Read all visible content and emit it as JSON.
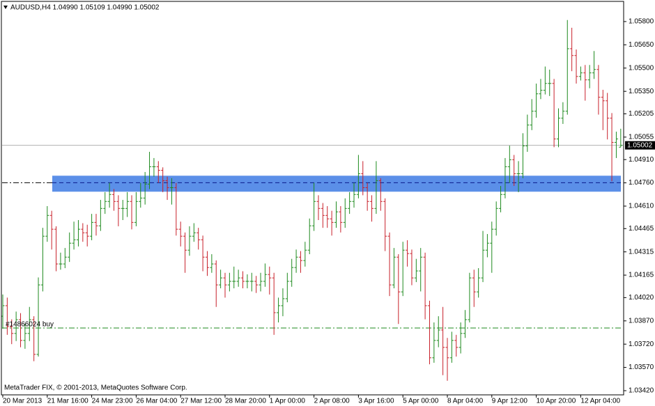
{
  "chart_data": {
    "type": "ohlc",
    "title": "AUDUSD,H4  1.04990 1.05109 1.04990 1.05002",
    "footer": "MetaTrader FIX, © 2001-2013, MetaQuotes Software Corp.",
    "categories": [
      "20 Mar 2013",
      null,
      null,
      null,
      null,
      null,
      null,
      null,
      null,
      null,
      "21 Mar 16:00",
      null,
      null,
      null,
      null,
      null,
      null,
      null,
      null,
      null,
      "24 Mar 23:00",
      null,
      null,
      null,
      null,
      null,
      null,
      null,
      null,
      null,
      "26 Mar 04:00",
      null,
      null,
      null,
      null,
      null,
      null,
      null,
      null,
      null,
      "27 Mar 12:00",
      null,
      null,
      null,
      null,
      null,
      null,
      null,
      null,
      null,
      "28 Mar 20:00",
      null,
      null,
      null,
      null,
      null,
      null,
      null,
      null,
      null,
      "1 Apr 00:00",
      null,
      null,
      null,
      null,
      null,
      null,
      null,
      null,
      null,
      "2 Apr 08:00",
      null,
      null,
      null,
      null,
      null,
      null,
      null,
      null,
      null,
      "3 Apr 16:00",
      null,
      null,
      null,
      null,
      null,
      null,
      null,
      null,
      null,
      "5 Apr 00:00",
      null,
      null,
      null,
      null,
      null,
      null,
      null,
      null,
      null,
      "8 Apr 04:00",
      null,
      null,
      null,
      null,
      null,
      null,
      null,
      null,
      null,
      "9 Apr 12:00",
      null,
      null,
      null,
      null,
      null,
      null,
      null,
      null,
      null,
      "10 Apr 20:00",
      null,
      null,
      null,
      null,
      null,
      null,
      null,
      null,
      null,
      "12 Apr 04:00",
      null,
      null,
      null,
      null,
      null,
      null,
      null,
      null,
      null
    ],
    "open": [
      1.039,
      1.03968,
      1.03833,
      1.03789,
      1.03878,
      1.03744,
      1.03789,
      1.03878,
      1.03654,
      1.04102,
      1.04416,
      1.0455,
      1.04461,
      1.04237,
      1.04237,
      1.04281,
      1.04371,
      1.04393,
      1.04461,
      1.04438,
      1.04416,
      1.04505,
      1.04483,
      1.04595,
      1.0464,
      1.04685,
      1.0464,
      1.04595,
      1.04595,
      1.0464,
      1.04505,
      1.0464,
      1.04662,
      1.04752,
      1.04864,
      1.04864,
      1.04841,
      1.04774,
      1.04729,
      1.04729,
      1.04461,
      1.04416,
      1.04326,
      1.04416,
      1.04438,
      1.04393,
      1.04281,
      1.04214,
      1.04237,
      1.04102,
      1.04147,
      1.04102,
      1.04125,
      1.04125,
      1.04147,
      1.04125,
      1.04125,
      1.04125,
      1.04102,
      1.04125,
      1.04169,
      1.04147,
      1.03923,
      1.03968,
      1.04013,
      1.04125,
      1.04214,
      1.04281,
      1.04259,
      1.04326,
      1.04483,
      1.0464,
      1.04595,
      1.0455,
      1.04528,
      1.04505,
      1.04573,
      1.04505,
      1.04595,
      1.0464,
      1.04685,
      1.04819,
      1.04729,
      1.0464,
      1.04595,
      1.04774,
      1.0464,
      1.04416,
      1.04102,
      1.04281,
      1.04057,
      1.04326,
      1.04304,
      1.04147,
      1.04192,
      1.04281,
      1.03968,
      1.03632,
      1.03744,
      1.03811,
      1.03699,
      1.03632,
      1.03744,
      1.03699,
      1.03789,
      1.03878,
      1.04147,
      1.04057,
      1.04147,
      1.04326,
      1.04371,
      1.04461,
      1.04595,
      1.04685,
      1.04864,
      1.04909,
      1.04819,
      1.04819,
      1.04998,
      1.05133,
      1.05222,
      1.05334,
      1.05357,
      1.05401,
      1.05401,
      1.05043,
      1.05177,
      1.05222,
      1.05625,
      1.05581,
      1.05446,
      1.05469,
      1.05424,
      1.05469,
      1.05491,
      1.05312,
      1.05289,
      1.05177,
      1.05021,
      1.0499
    ],
    "high": [
      1.0404,
      1.0402,
      1.0388,
      1.0393,
      1.0392,
      1.0385,
      1.0396,
      1.039,
      1.0415,
      1.0447,
      1.0461,
      1.0458,
      1.0448,
      1.0431,
      1.0434,
      1.0444,
      1.0451,
      1.0452,
      1.045,
      1.0449,
      1.0456,
      1.0456,
      1.0465,
      1.047,
      1.0476,
      1.0472,
      1.0468,
      1.0465,
      1.047,
      1.0468,
      1.047,
      1.0476,
      1.0483,
      1.0496,
      1.0492,
      1.049,
      1.0486,
      1.048,
      1.0479,
      1.0476,
      1.0451,
      1.0444,
      1.0448,
      1.045,
      1.0447,
      1.0442,
      1.0432,
      1.043,
      1.0426,
      1.042,
      1.0418,
      1.0418,
      1.0422,
      1.042,
      1.0419,
      1.0417,
      1.0418,
      1.0416,
      1.0418,
      1.0424,
      1.0422,
      1.0418,
      1.0402,
      1.0408,
      1.0418,
      1.0427,
      1.0433,
      1.0432,
      1.0438,
      1.0453,
      1.0476,
      1.0468,
      1.0463,
      1.0461,
      1.0458,
      1.0464,
      1.0461,
      1.0466,
      1.047,
      1.0476,
      1.0494,
      1.049,
      1.0476,
      1.0468,
      1.049,
      1.0479,
      1.0466,
      1.0444,
      1.0434,
      1.043,
      1.0438,
      1.0439,
      1.0433,
      1.0427,
      1.0434,
      1.0431,
      1.04,
      1.0386,
      1.039,
      1.0396,
      1.0376,
      1.038,
      1.0378,
      1.0386,
      1.0394,
      1.0418,
      1.042,
      1.0421,
      1.0445,
      1.0443,
      1.0451,
      1.0464,
      1.0474,
      1.0492,
      1.05,
      1.0494,
      1.049,
      1.0508,
      1.052,
      1.053,
      1.054,
      1.0543,
      1.0551,
      1.0549,
      1.0543,
      1.0524,
      1.0528,
      1.0581,
      1.0576,
      1.0562,
      1.0551,
      1.0552,
      1.0552,
      1.0561,
      1.0552,
      1.0536,
      1.0534,
      1.0521,
      1.0509,
      1.05109
    ],
    "low": [
      1.0382,
      1.0378,
      1.0372,
      1.0374,
      1.037,
      1.0369,
      1.0374,
      1.0361,
      1.0364,
      1.0406,
      1.0438,
      1.0433,
      1.0419,
      1.042,
      1.0421,
      1.0425,
      1.0433,
      1.0435,
      1.0438,
      1.0435,
      1.0439,
      1.0442,
      1.0445,
      1.0456,
      1.046,
      1.0458,
      1.0448,
      1.0452,
      1.0454,
      1.0446,
      1.0448,
      1.046,
      1.0462,
      1.0472,
      1.048,
      1.0476,
      1.047,
      1.0465,
      1.0462,
      1.0442,
      1.0435,
      1.0418,
      1.0429,
      1.0438,
      1.0433,
      1.0419,
      1.0416,
      1.0418,
      1.0396,
      1.0408,
      1.0402,
      1.0406,
      1.0408,
      1.0409,
      1.0408,
      1.0408,
      1.0406,
      1.0405,
      1.0406,
      1.0409,
      1.0404,
      1.0378,
      1.0386,
      1.039,
      1.0399,
      1.0409,
      1.0418,
      1.0418,
      1.0422,
      1.043,
      1.0445,
      1.0452,
      1.0447,
      1.0447,
      1.0442,
      1.0447,
      1.0444,
      1.0447,
      1.0456,
      1.046,
      1.0466,
      1.0468,
      1.0458,
      1.0451,
      1.0456,
      1.0458,
      1.0432,
      1.0403,
      1.0408,
      1.0385,
      1.0403,
      1.0422,
      1.041,
      1.0412,
      1.0406,
      1.0388,
      1.0359,
      1.036,
      1.037,
      1.0352,
      1.03484,
      1.036,
      1.0364,
      1.0366,
      1.0376,
      1.0386,
      1.0396,
      1.0402,
      1.0412,
      1.0428,
      1.0418,
      1.0442,
      1.0457,
      1.0466,
      1.0476,
      1.0474,
      1.047,
      1.0479,
      1.0496,
      1.051,
      1.0518,
      1.053,
      1.0533,
      1.0532,
      1.0499,
      1.0499,
      1.0514,
      1.052,
      1.0548,
      1.054,
      1.0542,
      1.0529,
      1.0537,
      1.0543,
      1.052,
      1.051,
      1.0504,
      1.0477,
      1.0492,
      1.0499
    ],
    "close": [
      1.03968,
      1.03833,
      1.03789,
      1.03878,
      1.03744,
      1.03789,
      1.03878,
      1.03654,
      1.04102,
      1.04416,
      1.0455,
      1.04461,
      1.04237,
      1.04237,
      1.04281,
      1.04371,
      1.04393,
      1.04461,
      1.04438,
      1.04416,
      1.04505,
      1.04483,
      1.04595,
      1.0464,
      1.04685,
      1.0464,
      1.04595,
      1.04595,
      1.0464,
      1.04505,
      1.0464,
      1.04662,
      1.04752,
      1.04864,
      1.04864,
      1.04841,
      1.04774,
      1.04729,
      1.04729,
      1.04461,
      1.04416,
      1.04326,
      1.04416,
      1.04438,
      1.04393,
      1.04281,
      1.04214,
      1.04237,
      1.04102,
      1.04147,
      1.04102,
      1.04125,
      1.04125,
      1.04147,
      1.04125,
      1.04125,
      1.04125,
      1.04102,
      1.04125,
      1.04169,
      1.04147,
      1.03923,
      1.03968,
      1.04013,
      1.04125,
      1.04214,
      1.04281,
      1.04259,
      1.04326,
      1.04483,
      1.0464,
      1.04595,
      1.0455,
      1.04528,
      1.04505,
      1.04573,
      1.04505,
      1.04595,
      1.0464,
      1.04685,
      1.04819,
      1.04729,
      1.0464,
      1.04595,
      1.04774,
      1.0464,
      1.04416,
      1.04102,
      1.04281,
      1.04057,
      1.04326,
      1.04304,
      1.04147,
      1.04192,
      1.04281,
      1.03968,
      1.03632,
      1.03744,
      1.03811,
      1.03699,
      1.03632,
      1.03744,
      1.03699,
      1.03789,
      1.03878,
      1.04147,
      1.04057,
      1.04147,
      1.04326,
      1.04371,
      1.04461,
      1.04595,
      1.04685,
      1.04864,
      1.04909,
      1.04819,
      1.04819,
      1.04998,
      1.05133,
      1.05222,
      1.05334,
      1.05357,
      1.05401,
      1.05401,
      1.05043,
      1.05177,
      1.05222,
      1.05625,
      1.05581,
      1.05446,
      1.05469,
      1.05424,
      1.05469,
      1.05491,
      1.05312,
      1.05289,
      1.05177,
      1.05021,
      1.05043,
      1.05002
    ],
    "up_color": "#1e8a1e",
    "down_color": "#c8202a",
    "ylim": [
      1.03393,
      1.0593
    ],
    "yticks": [
      {
        "value": 1.058,
        "label": "1.05800"
      },
      {
        "value": 1.0565,
        "label": "1.05650"
      },
      {
        "value": 1.055,
        "label": "1.05500"
      },
      {
        "value": 1.0535,
        "label": "1.05350"
      },
      {
        "value": 1.05205,
        "label": "1.05205"
      },
      {
        "value": 1.05055,
        "label": "1.05055"
      },
      {
        "value": 1.0491,
        "label": "1.04910"
      },
      {
        "value": 1.0476,
        "label": "1.04760"
      },
      {
        "value": 1.0461,
        "label": "1.04610"
      },
      {
        "value": 1.04465,
        "label": "1.04465"
      },
      {
        "value": 1.04315,
        "label": "1.04315"
      },
      {
        "value": 1.04165,
        "label": "1.04165"
      },
      {
        "value": 1.0402,
        "label": "1.04020"
      },
      {
        "value": 1.0387,
        "label": "1.03870"
      },
      {
        "value": 1.0372,
        "label": "1.03720"
      },
      {
        "value": 1.0357,
        "label": "1.03570"
      },
      {
        "value": 1.0342,
        "label": "1.03420"
      }
    ],
    "last_price": 1.05002,
    "zone": {
      "low": 1.04703,
      "high": 1.04806,
      "color": "#5b8fe8"
    },
    "level_line": 1.04761,
    "order": {
      "label": "#14866024 buy",
      "value": 1.03824
    }
  }
}
